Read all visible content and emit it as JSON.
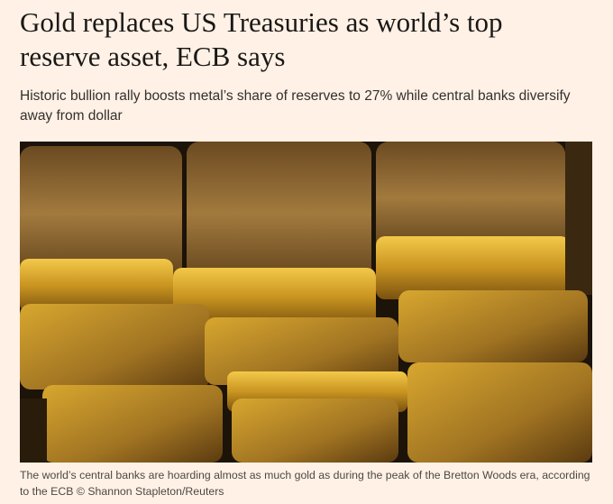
{
  "article": {
    "headline": "Gold replaces US Treasuries as world’s top reserve asset, ECB says",
    "standfirst": "Historic bullion rally boosts metal’s share of reserves to 27% while central banks diversify away from dollar",
    "caption": "The world’s central banks are hoarding almost as much gold as during the peak of the Bretton Woods era, according to the ECB © Shannon Stapleton/Reuters"
  }
}
